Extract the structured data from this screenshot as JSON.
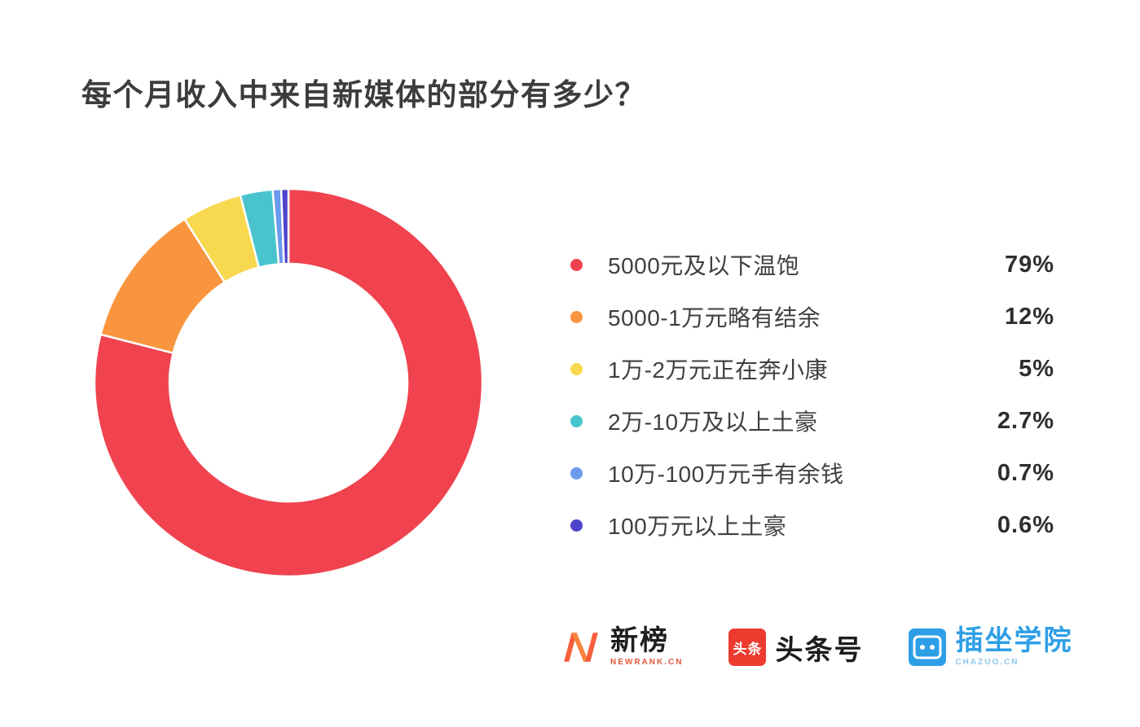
{
  "page": {
    "title": "每个月收入中来自新媒体的部分有多少？"
  },
  "chart_data": {
    "type": "pie",
    "subtype": "donut",
    "title": "每个月收入中来自新媒体的部分有多少？",
    "start_angle_deg": 0,
    "direction": "clockwise",
    "legend_position": "right",
    "hole_color": "#ffffff",
    "segment_gap_color": "#ffffff",
    "segments": [
      {
        "label": "5000元及以下温饱",
        "value": 79,
        "display": "79%",
        "color": "#f0434f"
      },
      {
        "label": "5000-1万元略有结余",
        "value": 12,
        "display": "12%",
        "color": "#f9953f"
      },
      {
        "label": "1万-2万元正在奔小康",
        "value": 5,
        "display": "5%",
        "color": "#f8d84e"
      },
      {
        "label": "2万-10万及以上土豪",
        "value": 2.7,
        "display": "2.7%",
        "color": "#49c4ce"
      },
      {
        "label": "10万-100万元手有余钱",
        "value": 0.7,
        "display": "0.7%",
        "color": "#6b9aef"
      },
      {
        "label": "100万元以上土豪",
        "value": 0.6,
        "display": "0.6%",
        "color": "#4e43cb"
      }
    ]
  },
  "footer": {
    "newrank": {
      "text": "新榜",
      "subtext": "NEWRANK.CN",
      "accent": "#f85f3c"
    },
    "toutiao": {
      "badge": "头条",
      "text": "头条号"
    },
    "chazuo": {
      "text": "插坐学院",
      "subtext": "CHAZUO.CN",
      "accent": "#2e9fe6"
    }
  }
}
